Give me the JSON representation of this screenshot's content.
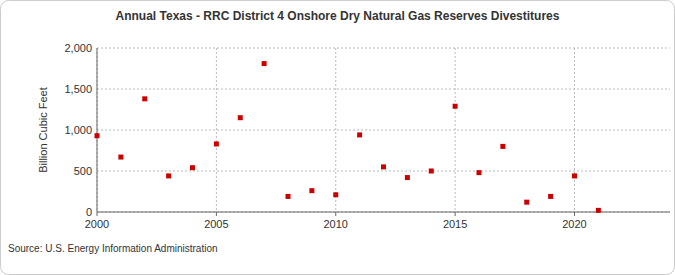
{
  "chart_data": {
    "type": "scatter",
    "title": "Annual Texas - RRC District 4 Onshore Dry Natural Gas Reserves Divestitures",
    "y_label": "Billion Cubic Feet",
    "source": "Source: U.S. Energy Information Administration",
    "x": [
      2000,
      2001,
      2002,
      2003,
      2004,
      2005,
      2006,
      2007,
      2008,
      2009,
      2010,
      2011,
      2012,
      2013,
      2014,
      2015,
      2016,
      2017,
      2018,
      2019,
      2020,
      2021
    ],
    "values": [
      930,
      670,
      1380,
      440,
      540,
      830,
      1150,
      1810,
      190,
      260,
      210,
      940,
      550,
      420,
      500,
      1290,
      480,
      800,
      120,
      190,
      440,
      20
    ],
    "color": "#cc0000",
    "marker": "square",
    "xlim": [
      2000,
      2024
    ],
    "ylim": [
      0,
      2000
    ],
    "xticks": [
      2000,
      2005,
      2010,
      2015,
      2020
    ],
    "yticks": [
      0,
      500,
      {
        "value": 1000,
        "label": "1,000"
      },
      {
        "value": 1500,
        "label": "1,500"
      },
      {
        "value": 2000,
        "label": "2,000"
      }
    ],
    "grid": true
  }
}
